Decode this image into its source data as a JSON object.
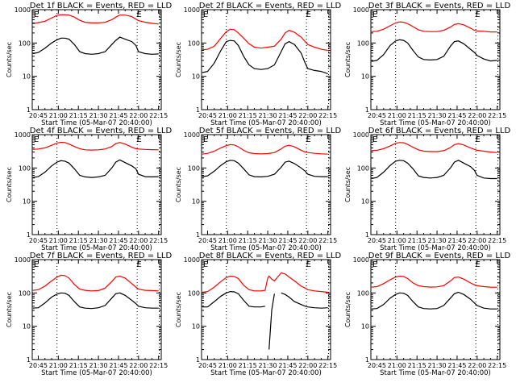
{
  "chart_data": [
    {
      "type": "line",
      "title": "Det 1f BLACK = Events, RED = LLD",
      "xlabel": "Start Time (05-Mar-07 20:40:00)",
      "ylabel": "Counts/sec",
      "yscale": "log",
      "ylim": [
        1,
        1000
      ],
      "yticks": [
        "1",
        "10",
        "100",
        "1000"
      ],
      "xticks": [
        "20:45",
        "21:00",
        "21:15",
        "21:30",
        "21:45",
        "22:00",
        "22:15"
      ],
      "xlim_minutes_after_2040": [
        0.5,
        97
      ],
      "markers": {
        "label": "E",
        "at_minutes": [
          1,
          78
        ]
      },
      "dotted_lines_minutes": [
        19,
        79,
        95.5
      ],
      "x": [
        1,
        5,
        10,
        15,
        19,
        22,
        25,
        28,
        32,
        36,
        40,
        45,
        50,
        55,
        60,
        63,
        66,
        70,
        75,
        78,
        80,
        85,
        90,
        95
      ],
      "series": [
        {
          "name": "LLD",
          "color": "#ff0000",
          "values": [
            380,
            410,
            450,
            560,
            680,
            700,
            700,
            690,
            600,
            480,
            420,
            400,
            400,
            420,
            500,
            600,
            690,
            690,
            620,
            520,
            470,
            420,
            390,
            370
          ]
        },
        {
          "name": "Events",
          "color": "#000000",
          "values": [
            48,
            52,
            70,
            100,
            125,
            140,
            140,
            130,
            90,
            55,
            48,
            46,
            48,
            55,
            90,
            120,
            150,
            130,
            110,
            85,
            55,
            48,
            46,
            47
          ]
        }
      ]
    },
    {
      "type": "line",
      "title": "Det 2f BLACK = Events, RED = LLD",
      "xlabel": "Start Time (05-Mar-07 20:40:00)",
      "ylabel": "Counts/sec",
      "yscale": "log",
      "ylim": [
        1,
        1000
      ],
      "yticks": [
        "1",
        "10",
        "100",
        "1000"
      ],
      "xticks": [
        "20:45",
        "21:00",
        "21:15",
        "21:30",
        "21:45",
        "22:00",
        "22:15"
      ],
      "xlim_minutes_after_2040": [
        0.5,
        97
      ],
      "markers": {
        "label": "E",
        "at_minutes": [
          1,
          78
        ]
      },
      "dotted_lines_minutes": [
        19,
        79,
        95.5
      ],
      "x": [
        1,
        5,
        10,
        15,
        19,
        22,
        25,
        28,
        32,
        36,
        40,
        45,
        50,
        55,
        60,
        63,
        66,
        70,
        75,
        78,
        80,
        85,
        90,
        95
      ],
      "series": [
        {
          "name": "LLD",
          "color": "#ff0000",
          "values": [
            62,
            65,
            80,
            140,
            220,
            260,
            250,
            200,
            140,
            95,
            75,
            70,
            75,
            80,
            130,
            200,
            240,
            210,
            150,
            110,
            90,
            75,
            65,
            60
          ]
        },
        {
          "name": "Events",
          "color": "#000000",
          "values": [
            13,
            14,
            25,
            60,
            110,
            120,
            115,
            85,
            40,
            22,
            17,
            16,
            17,
            22,
            55,
            95,
            110,
            90,
            50,
            25,
            17,
            15,
            14,
            12
          ]
        }
      ]
    },
    {
      "type": "line",
      "title": "Det 3f BLACK = Events, RED = LLD",
      "xlabel": "Start Time (05-Mar-07 20:40:00)",
      "ylabel": "Counts/sec",
      "yscale": "log",
      "ylim": [
        1,
        1000
      ],
      "yticks": [
        "1",
        "10",
        "100",
        "1000"
      ],
      "xticks": [
        "20:45",
        "21:00",
        "21:15",
        "21:30",
        "21:45",
        "22:00",
        "22:15"
      ],
      "xlim_minutes_after_2040": [
        0.5,
        97
      ],
      "markers": {
        "label": "E",
        "at_minutes": [
          1,
          78
        ]
      },
      "dotted_lines_minutes": [
        19,
        79,
        95.5
      ],
      "x": [
        1,
        5,
        10,
        15,
        19,
        22,
        25,
        28,
        32,
        36,
        40,
        45,
        50,
        55,
        60,
        63,
        66,
        70,
        75,
        78,
        80,
        85,
        90,
        95
      ],
      "series": [
        {
          "name": "LLD",
          "color": "#ff0000",
          "values": [
            220,
            225,
            260,
            330,
            400,
            430,
            420,
            380,
            310,
            250,
            225,
            220,
            220,
            240,
            300,
            360,
            380,
            350,
            280,
            240,
            230,
            225,
            215,
            215
          ]
        },
        {
          "name": "Events",
          "color": "#000000",
          "values": [
            28,
            30,
            45,
            85,
            115,
            125,
            120,
            100,
            60,
            38,
            32,
            31,
            32,
            40,
            80,
            110,
            115,
            95,
            65,
            52,
            42,
            33,
            29,
            30
          ]
        }
      ]
    },
    {
      "type": "line",
      "title": "Det 4f BLACK = Events, RED = LLD",
      "xlabel": "Start Time (05-Mar-07 20:40:00)",
      "ylabel": "Counts/sec",
      "yscale": "log",
      "ylim": [
        1,
        1000
      ],
      "yticks": [
        "1",
        "10",
        "100",
        "1000"
      ],
      "xticks": [
        "20:45",
        "21:00",
        "21:15",
        "21:30",
        "21:45",
        "22:00",
        "22:15"
      ],
      "xlim_minutes_after_2040": [
        0.5,
        97
      ],
      "markers": {
        "label": "E",
        "at_minutes": [
          1,
          78
        ]
      },
      "dotted_lines_minutes": [
        19,
        79,
        95.5
      ],
      "x": [
        1,
        5,
        10,
        15,
        19,
        22,
        25,
        28,
        32,
        36,
        40,
        45,
        50,
        55,
        60,
        63,
        66,
        70,
        75,
        78,
        80,
        85,
        90,
        95
      ],
      "series": [
        {
          "name": "LLD",
          "color": "#ff0000",
          "values": [
            360,
            370,
            400,
            480,
            560,
            590,
            580,
            520,
            440,
            380,
            350,
            345,
            350,
            370,
            440,
            540,
            580,
            520,
            420,
            380,
            370,
            360,
            355,
            350
          ]
        },
        {
          "name": "Events",
          "color": "#000000",
          "values": [
            52,
            55,
            75,
            115,
            150,
            165,
            160,
            140,
            95,
            60,
            54,
            52,
            54,
            60,
            100,
            150,
            175,
            145,
            115,
            95,
            65,
            55,
            54,
            55
          ]
        }
      ]
    },
    {
      "type": "line",
      "title": "Det 5f BLACK = Events, RED = LLD",
      "xlabel": "Start Time (05-Mar-07 20:40:00)",
      "ylabel": "Counts/sec",
      "yscale": "log",
      "ylim": [
        1,
        1000
      ],
      "yticks": [
        "1",
        "10",
        "100",
        "1000"
      ],
      "xticks": [
        "20:45",
        "21:00",
        "21:15",
        "21:30",
        "21:45",
        "22:00",
        "22:15"
      ],
      "xlim_minutes_after_2040": [
        0.5,
        97
      ],
      "markers": {
        "label": "E",
        "at_minutes": [
          1,
          78
        ]
      },
      "dotted_lines_minutes": [
        19,
        79,
        95.5
      ],
      "x": [
        1,
        5,
        10,
        15,
        19,
        22,
        25,
        28,
        32,
        36,
        40,
        45,
        50,
        55,
        60,
        63,
        66,
        70,
        75,
        78,
        80,
        85,
        90,
        95
      ],
      "series": [
        {
          "name": "LLD",
          "color": "#ff0000",
          "values": [
            260,
            275,
            320,
            400,
            470,
            500,
            490,
            430,
            340,
            285,
            270,
            265,
            270,
            290,
            370,
            450,
            480,
            430,
            340,
            300,
            290,
            275,
            265,
            260
          ]
        },
        {
          "name": "Events",
          "color": "#000000",
          "values": [
            55,
            58,
            80,
            120,
            155,
            170,
            165,
            140,
            95,
            62,
            55,
            54,
            56,
            65,
            105,
            150,
            160,
            135,
            100,
            80,
            65,
            56,
            55,
            55
          ]
        }
      ]
    },
    {
      "type": "line",
      "title": "Det 6f BLACK = Events, RED = LLD",
      "xlabel": "Start Time (05-Mar-07 20:40:00)",
      "ylabel": "Counts/sec",
      "yscale": "log",
      "ylim": [
        1,
        1000
      ],
      "yticks": [
        "1",
        "10",
        "100",
        "1000"
      ],
      "xticks": [
        "20:45",
        "21:00",
        "21:15",
        "21:30",
        "21:45",
        "22:00",
        "22:15"
      ],
      "xlim_minutes_after_2040": [
        0.5,
        97
      ],
      "markers": {
        "label": "E",
        "at_minutes": [
          1,
          78
        ]
      },
      "dotted_lines_minutes": [
        19,
        79,
        95.5
      ],
      "x": [
        1,
        5,
        10,
        15,
        19,
        22,
        25,
        28,
        32,
        36,
        40,
        45,
        50,
        55,
        60,
        63,
        66,
        70,
        75,
        78,
        80,
        85,
        90,
        95
      ],
      "series": [
        {
          "name": "LLD",
          "color": "#ff0000",
          "values": [
            330,
            340,
            380,
            460,
            550,
            580,
            570,
            510,
            420,
            350,
            320,
            310,
            310,
            330,
            410,
            500,
            540,
            490,
            400,
            360,
            340,
            320,
            300,
            290
          ]
        },
        {
          "name": "Events",
          "color": "#000000",
          "values": [
            48,
            52,
            75,
            120,
            160,
            170,
            165,
            140,
            95,
            58,
            52,
            50,
            52,
            60,
            100,
            150,
            170,
            140,
            110,
            85,
            60,
            50,
            48,
            48
          ]
        }
      ]
    },
    {
      "type": "line",
      "title": "Det 7f BLACK = Events, RED = LLD",
      "xlabel": "Start Time (05-Mar-07 20:40:00)",
      "ylabel": "Counts/sec",
      "yscale": "log",
      "ylim": [
        1,
        1000
      ],
      "yticks": [
        "1",
        "10",
        "100",
        "1000"
      ],
      "xticks": [
        "20:45",
        "21:00",
        "21:15",
        "21:30",
        "21:45",
        "22:00",
        "22:15"
      ],
      "xlim_minutes_after_2040": [
        0.5,
        97
      ],
      "markers": {
        "label": "E",
        "at_minutes": [
          1,
          78
        ]
      },
      "dotted_lines_minutes": [
        19,
        79,
        95.5
      ],
      "x": [
        1,
        5,
        10,
        15,
        19,
        22,
        25,
        28,
        32,
        36,
        40,
        45,
        50,
        55,
        60,
        63,
        66,
        70,
        75,
        78,
        80,
        85,
        90,
        95
      ],
      "series": [
        {
          "name": "LLD",
          "color": "#ff0000",
          "values": [
            120,
            125,
            160,
            230,
            300,
            340,
            330,
            280,
            180,
            130,
            120,
            115,
            118,
            140,
            220,
            300,
            320,
            280,
            190,
            150,
            130,
            120,
            118,
            115
          ]
        },
        {
          "name": "Events",
          "color": "#000000",
          "values": [
            35,
            36,
            50,
            75,
            92,
            100,
            98,
            85,
            55,
            38,
            35,
            34,
            36,
            42,
            70,
            95,
            100,
            85,
            60,
            48,
            40,
            36,
            35,
            35
          ]
        }
      ]
    },
    {
      "type": "line",
      "title": "Det 8f BLACK = Events, RED = LLD",
      "xlabel": "Start Time (05-Mar-07 20:40:00)",
      "ylabel": "Counts/sec",
      "yscale": "log",
      "ylim": [
        1,
        1000
      ],
      "yticks": [
        "1",
        "10",
        "100",
        "1000"
      ],
      "xticks": [
        "20:45",
        "21:00",
        "21:15",
        "21:30",
        "21:45",
        "22:00",
        "22:15"
      ],
      "xlim_minutes_after_2040": [
        0.5,
        97
      ],
      "markers": {
        "label": "E",
        "at_minutes": [
          1,
          78
        ]
      },
      "dotted_lines_minutes": [
        19,
        79,
        95.5
      ],
      "x": [
        1,
        5,
        10,
        15,
        19,
        22,
        25,
        28,
        32,
        36,
        40,
        45,
        48,
        50,
        51,
        53,
        55,
        58,
        60,
        63,
        66,
        70,
        75,
        78,
        80,
        85,
        90,
        95
      ],
      "series": [
        {
          "name": "LLD",
          "color": "#ff0000",
          "values": [
            105,
            110,
            150,
            220,
            290,
            320,
            310,
            270,
            170,
            125,
            115,
            115,
            120,
            280,
            320,
            260,
            230,
            320,
            400,
            370,
            300,
            230,
            160,
            140,
            125,
            115,
            110,
            105
          ]
        },
        {
          "name": "Events",
          "color": "#000000",
          "values": [
            38,
            38,
            55,
            80,
            100,
            110,
            108,
            95,
            60,
            40,
            38,
            38,
            40,
            null,
            2,
            30,
            95,
            null,
            100,
            90,
            75,
            55,
            45,
            40,
            38,
            36,
            35,
            36
          ]
        }
      ]
    },
    {
      "type": "line",
      "title": "Det 9f BLACK = Events, RED = LLD",
      "xlabel": "Start Time (05-Mar-07 20:40:00)",
      "ylabel": "Counts/sec",
      "yscale": "log",
      "ylim": [
        1,
        1000
      ],
      "yticks": [
        "1",
        "10",
        "100",
        "1000"
      ],
      "xticks": [
        "20:45",
        "21:00",
        "21:15",
        "21:30",
        "21:45",
        "22:00",
        "22:15"
      ],
      "xlim_minutes_after_2040": [
        0.5,
        97
      ],
      "markers": {
        "label": "E",
        "at_minutes": [
          1,
          78
        ]
      },
      "dotted_lines_minutes": [
        19,
        79,
        95.5
      ],
      "x": [
        1,
        5,
        10,
        15,
        19,
        22,
        25,
        28,
        32,
        36,
        40,
        45,
        50,
        55,
        60,
        63,
        66,
        70,
        75,
        78,
        80,
        85,
        90,
        95
      ],
      "series": [
        {
          "name": "LLD",
          "color": "#ff0000",
          "values": [
            150,
            155,
            190,
            250,
            300,
            320,
            310,
            270,
            200,
            165,
            155,
            150,
            152,
            165,
            230,
            290,
            300,
            260,
            200,
            175,
            165,
            155,
            150,
            148
          ]
        },
        {
          "name": "Events",
          "color": "#000000",
          "values": [
            33,
            34,
            45,
            70,
            90,
            100,
            98,
            85,
            55,
            38,
            34,
            33,
            34,
            42,
            70,
            95,
            105,
            90,
            65,
            50,
            42,
            35,
            33,
            33
          ]
        }
      ]
    }
  ]
}
